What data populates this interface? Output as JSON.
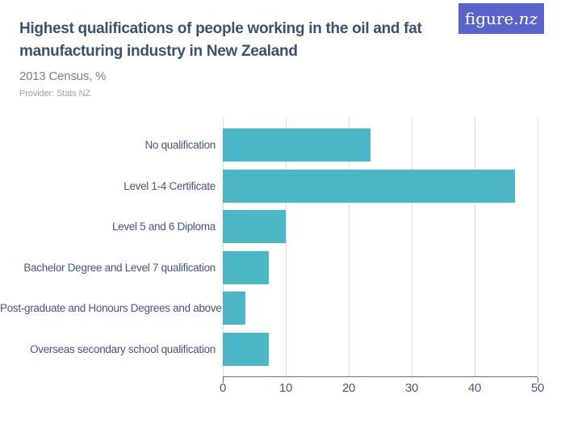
{
  "header": {
    "title": "Highest qualifications of people working in the oil and fat manufacturing industry in New Zealand",
    "title_lines": [
      "Highest qualifications of people working in the oil and fat",
      "manufacturing industry in New Zealand"
    ],
    "subtitle": "2013 Census, %",
    "provider": "Provider: Stats NZ",
    "logo": {
      "text": "figure.nz",
      "text_regular": "figure.",
      "text_italic": "nz",
      "bg_color": "#5a63c8",
      "text_color": "#ffffff"
    }
  },
  "chart_data": {
    "type": "bar",
    "orientation": "horizontal",
    "title": "Highest qualifications of people working in the oil and fat manufacturing industry in New Zealand",
    "subtitle": "2013 Census, %",
    "categories": [
      "No qualification",
      "Level 1-4 Certificate",
      "Level 5 and 6 Diploma",
      "Bachelor Degree and Level 7 qualification",
      "Post-graduate and Honours Degrees and above",
      "Overseas secondary school qualification"
    ],
    "values": [
      23.5,
      46.4,
      10,
      7.3,
      3.6,
      7.3
    ],
    "xlabel": "",
    "ylabel": "",
    "xlim": [
      0,
      50
    ],
    "x_ticks": [
      "0",
      "10",
      "20",
      "30",
      "40",
      "50"
    ],
    "grid": true,
    "legend": false,
    "bar_color": "#4db6c4"
  },
  "colors": {
    "bar": "#4db6c4",
    "brand_purple": "#5a63c8",
    "title_text": "#3a5170",
    "axis_text": "#44597a",
    "gridline": "#dcdce0",
    "axis_line": "#6e6e70"
  }
}
